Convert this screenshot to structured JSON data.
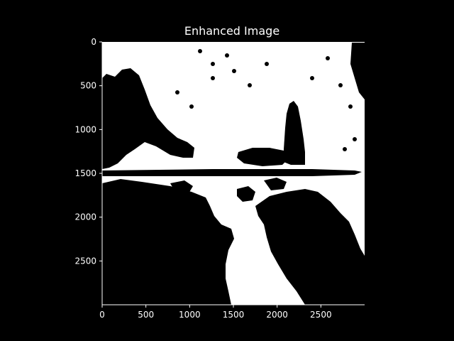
{
  "chart_data": {
    "type": "heatmap",
    "title": "Enhanced Image",
    "colormap": "binary (black/white)",
    "background": "#000000",
    "foreground": "#ffffff",
    "xlim": [
      0,
      3000
    ],
    "ylim": [
      3000,
      0
    ],
    "x_ticks": [
      0,
      500,
      1000,
      1500,
      2000,
      2500
    ],
    "y_ticks": [
      0,
      500,
      1000,
      1500,
      2000,
      2500
    ],
    "grid": false,
    "legend": "none"
  }
}
